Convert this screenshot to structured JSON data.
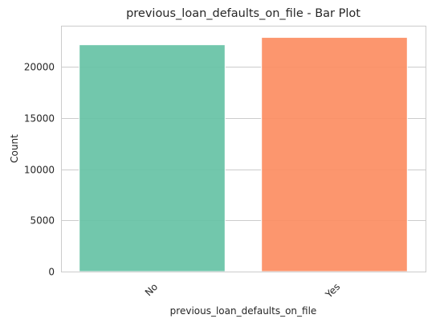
{
  "chart_data": {
    "type": "bar",
    "title": "previous_loan_defaults_on_file - Bar Plot",
    "xlabel": "previous_loan_defaults_on_file",
    "ylabel": "Count",
    "categories": [
      "No",
      "Yes"
    ],
    "values": [
      22142,
      22858
    ],
    "colors": [
      "#66c2a5",
      "#fc8d62"
    ],
    "ylim": [
      0,
      24000
    ],
    "yticks": [
      0,
      5000,
      10000,
      15000,
      20000
    ],
    "ytick_labels": [
      "0",
      "5000",
      "10000",
      "15000",
      "20000"
    ],
    "grid": "horizontal",
    "style": "seaborn-whitegrid"
  }
}
